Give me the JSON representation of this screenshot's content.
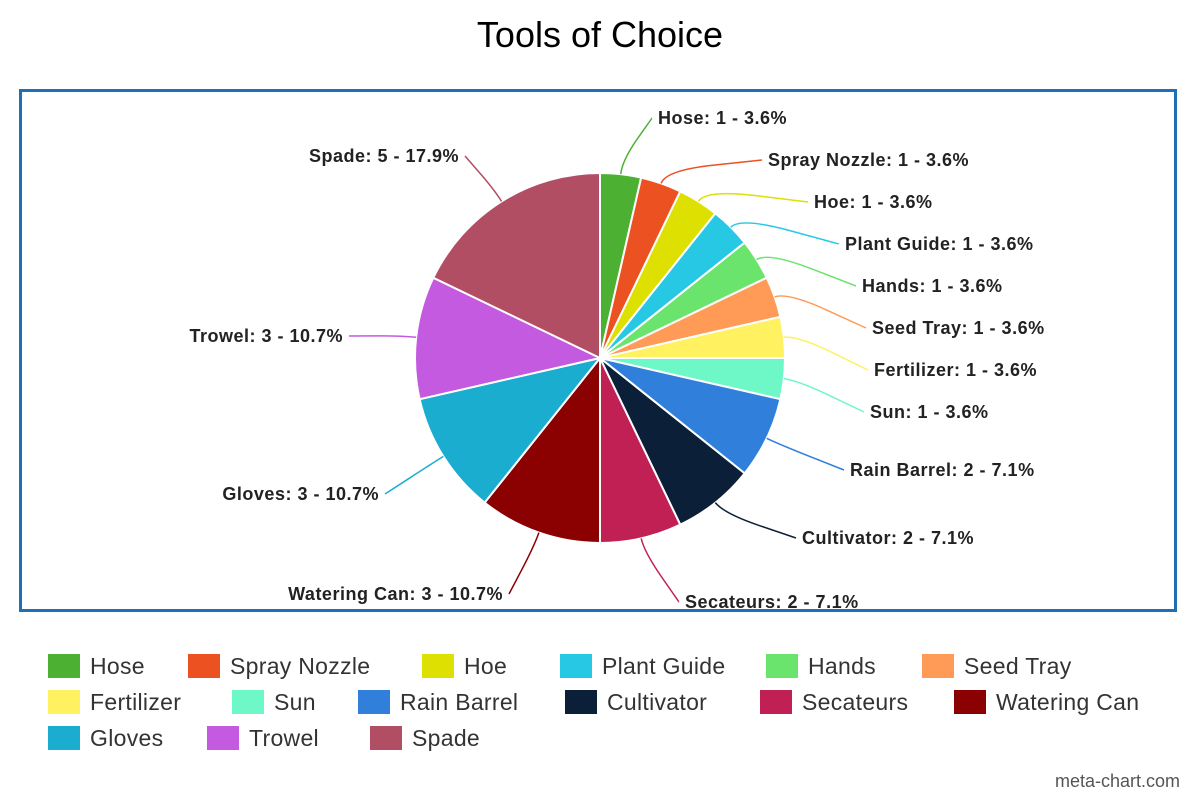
{
  "watermark": "meta-chart.com",
  "chart_data": {
    "type": "pie",
    "title": "Tools of Choice",
    "start_angle_deg": 0,
    "direction": "clockwise",
    "legend_position": "bottom",
    "slices": [
      {
        "label": "Hose",
        "value": 1,
        "percent": "3.6%",
        "color": "#4cb132"
      },
      {
        "label": "Spray Nozzle",
        "value": 1,
        "percent": "3.6%",
        "color": "#ec5221"
      },
      {
        "label": "Hoe",
        "value": 1,
        "percent": "3.6%",
        "color": "#dde000"
      },
      {
        "label": "Plant Guide",
        "value": 1,
        "percent": "3.6%",
        "color": "#27c8e4"
      },
      {
        "label": "Hands",
        "value": 1,
        "percent": "3.6%",
        "color": "#6ae46c"
      },
      {
        "label": "Seed Tray",
        "value": 1,
        "percent": "3.6%",
        "color": "#ff9a57"
      },
      {
        "label": "Fertilizer",
        "value": 1,
        "percent": "3.6%",
        "color": "#fff160"
      },
      {
        "label": "Sun",
        "value": 1,
        "percent": "3.6%",
        "color": "#6ef8c8"
      },
      {
        "label": "Rain Barrel",
        "value": 2,
        "percent": "7.1%",
        "color": "#2f7fdb"
      },
      {
        "label": "Cultivator",
        "value": 2,
        "percent": "7.1%",
        "color": "#0b2038"
      },
      {
        "label": "Secateurs",
        "value": 2,
        "percent": "7.1%",
        "color": "#c02054"
      },
      {
        "label": "Watering Can",
        "value": 3,
        "percent": "10.7%",
        "color": "#8b0000"
      },
      {
        "label": "Gloves",
        "value": 3,
        "percent": "10.7%",
        "color": "#1badd0"
      },
      {
        "label": "Trowel",
        "value": 3,
        "percent": "10.7%",
        "color": "#c45ae0"
      },
      {
        "label": "Spade",
        "value": 5,
        "percent": "17.9%",
        "color": "#b24e63"
      }
    ]
  }
}
